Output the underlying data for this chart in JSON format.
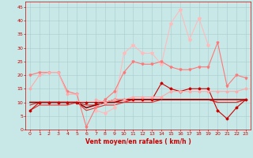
{
  "x": [
    0,
    1,
    2,
    3,
    4,
    5,
    6,
    7,
    8,
    9,
    10,
    11,
    12,
    13,
    14,
    15,
    16,
    17,
    18,
    19,
    20,
    21,
    22,
    23
  ],
  "series": [
    {
      "y": [
        7,
        10,
        10,
        10,
        10,
        10,
        10,
        10,
        10,
        11,
        11,
        11,
        11,
        11,
        17,
        15,
        14,
        15,
        15,
        15,
        7,
        4,
        8,
        11
      ],
      "color": "#cc0000",
      "lw": 0.8,
      "marker": "D",
      "ms": 1.5,
      "zorder": 5
    },
    {
      "y": [
        10,
        10,
        10,
        10,
        10,
        10,
        8,
        9,
        10,
        10,
        11,
        11,
        11,
        11,
        11,
        11,
        11,
        11,
        11,
        11,
        11,
        11,
        11,
        11
      ],
      "color": "#990000",
      "lw": 1.2,
      "marker": null,
      "ms": 0,
      "zorder": 4
    },
    {
      "y": [
        9,
        10,
        10,
        10,
        10,
        10,
        9,
        9,
        10,
        10,
        10,
        11,
        11,
        11,
        11,
        11,
        11,
        11,
        11,
        11,
        10,
        10,
        10,
        11
      ],
      "color": "#cc2222",
      "lw": 0.8,
      "marker": null,
      "ms": 0,
      "zorder": 3
    },
    {
      "y": [
        7,
        9,
        9,
        9,
        9,
        10,
        7,
        8,
        9,
        9,
        10,
        10,
        10,
        10,
        11,
        11,
        11,
        11,
        11,
        11,
        10,
        10,
        10,
        11
      ],
      "color": "#dd3333",
      "lw": 0.8,
      "marker": null,
      "ms": 0,
      "zorder": 3
    },
    {
      "y": [
        15,
        20,
        21,
        21,
        13,
        13,
        null,
        11,
        10,
        11,
        11,
        12,
        12,
        12,
        12,
        14,
        14,
        14,
        14,
        14,
        14,
        14,
        14,
        15
      ],
      "color": "#ffaaaa",
      "lw": 0.8,
      "marker": "D",
      "ms": 1.5,
      "zorder": 5
    },
    {
      "y": [
        20,
        21,
        21,
        21,
        14,
        13,
        1,
        8,
        11,
        14,
        21,
        25,
        24,
        24,
        25,
        23,
        22,
        22,
        23,
        23,
        32,
        16,
        20,
        19
      ],
      "color": "#ff7777",
      "lw": 0.8,
      "marker": "v",
      "ms": 2.0,
      "zorder": 4
    },
    {
      "y": [
        null,
        null,
        null,
        null,
        null,
        null,
        null,
        7,
        6,
        8,
        28,
        31,
        28,
        28,
        24,
        39,
        44,
        33,
        41,
        31,
        null,
        null,
        null,
        null
      ],
      "color": "#ffbbbb",
      "lw": 0.8,
      "marker": "*",
      "ms": 3,
      "zorder": 3
    }
  ],
  "xlabel": "Vent moyen/en rafales ( km/h )",
  "xlim": [
    -0.5,
    23.5
  ],
  "ylim": [
    0,
    47
  ],
  "yticks": [
    0,
    5,
    10,
    15,
    20,
    25,
    30,
    35,
    40,
    45
  ],
  "xticks": [
    0,
    1,
    2,
    3,
    4,
    5,
    6,
    7,
    8,
    9,
    10,
    11,
    12,
    13,
    14,
    15,
    16,
    17,
    18,
    19,
    20,
    21,
    22,
    23
  ],
  "bg_color": "#c8e8e8",
  "grid_color": "#aacccc",
  "tick_color": "#cc0000",
  "label_color": "#cc0000",
  "axis_color": "#cc0000",
  "tick_fontsize": 4.5,
  "xlabel_fontsize": 5.5
}
